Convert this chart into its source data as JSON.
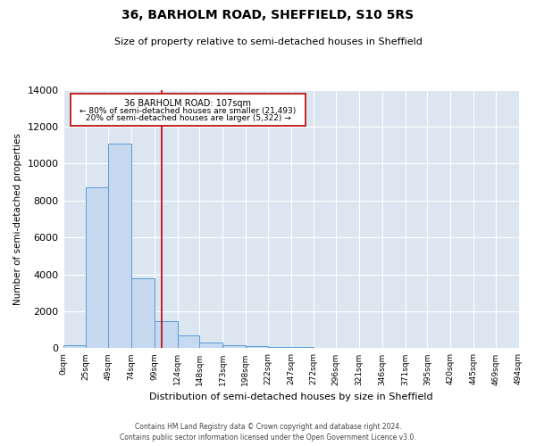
{
  "title": "36, BARHOLM ROAD, SHEFFIELD, S10 5RS",
  "subtitle": "Size of property relative to semi-detached houses in Sheffield",
  "xlabel": "Distribution of semi-detached houses by size in Sheffield",
  "ylabel": "Number of semi-detached properties",
  "property_size": 107,
  "property_label": "36 BARHOLM ROAD: 107sqm",
  "pct_smaller": 80,
  "count_smaller": 21493,
  "pct_larger": 20,
  "count_larger": 5322,
  "bar_color": "#c6d9f0",
  "bar_edge_color": "#5b9bd5",
  "vline_color": "#c00000",
  "annotation_box_color": "#c00000",
  "bg_color": "#dce6f1",
  "grid_color": "#ffffff",
  "ylim": [
    0,
    14000
  ],
  "bin_edges": [
    0,
    25,
    49,
    74,
    99,
    124,
    148,
    173,
    198,
    222,
    247,
    272,
    296,
    321,
    346,
    371,
    395,
    420,
    445,
    469,
    494
  ],
  "bin_labels": [
    "0sqm",
    "25sqm",
    "49sqm",
    "74sqm",
    "99sqm",
    "124sqm",
    "148sqm",
    "173sqm",
    "198sqm",
    "222sqm",
    "247sqm",
    "272sqm",
    "296sqm",
    "321sqm",
    "346sqm",
    "371sqm",
    "395sqm",
    "420sqm",
    "445sqm",
    "469sqm",
    "494sqm"
  ],
  "counts": [
    150,
    8700,
    11100,
    3800,
    1450,
    700,
    300,
    180,
    130,
    80,
    50,
    25,
    15,
    8,
    4,
    2,
    1,
    1,
    1,
    0
  ],
  "footer": "Contains HM Land Registry data © Crown copyright and database right 2024.\nContains public sector information licensed under the Open Government Licence v3.0."
}
